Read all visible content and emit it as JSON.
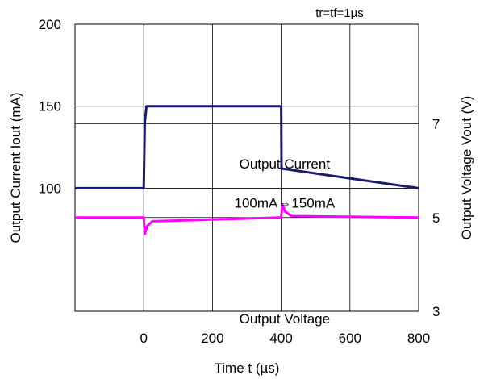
{
  "chart_data": {
    "type": "line",
    "xlabel": "Time t (µs)",
    "ylabel_left": "Output Current Iout (mA)",
    "ylabel_right": "Output Voltage Vout (V)",
    "xlim": [
      -200,
      800
    ],
    "x_ticks": [
      0,
      200,
      400,
      600,
      800
    ],
    "ylim_left": [
      25,
      200
    ],
    "y_ticks_left": [
      100,
      150,
      200
    ],
    "ylim_right": [
      3,
      9.125
    ],
    "y_ticks_right": [
      3,
      5,
      7
    ],
    "grid": true,
    "series": [
      {
        "name": "Output Current",
        "axis": "left",
        "color": "#1a1a6e",
        "x": [
          -200,
          0,
          3,
          8,
          398,
          400,
          401,
          800
        ],
        "y": [
          100,
          100,
          140,
          150,
          150,
          150,
          112,
          100
        ]
      },
      {
        "name": "Output Voltage",
        "axis": "right",
        "color": "#ff00ff",
        "x": [
          -200,
          0,
          3,
          10,
          25,
          398,
          400,
          403,
          412,
          430,
          800
        ],
        "y": [
          5.0,
          5.0,
          4.65,
          4.82,
          4.92,
          5.0,
          5.0,
          5.28,
          5.12,
          5.03,
          5.0
        ]
      }
    ],
    "annotations": [
      {
        "text": "Output Current",
        "x": 410,
        "y_left": 115
      },
      {
        "text": "100mA⇔150mA",
        "x": 410,
        "y_left": 91
      },
      {
        "text": "Output Voltage",
        "x": 410,
        "y_left": 20.5
      },
      {
        "text": "tr=tf=1µs",
        "x": 570,
        "y_left": 204
      }
    ]
  }
}
